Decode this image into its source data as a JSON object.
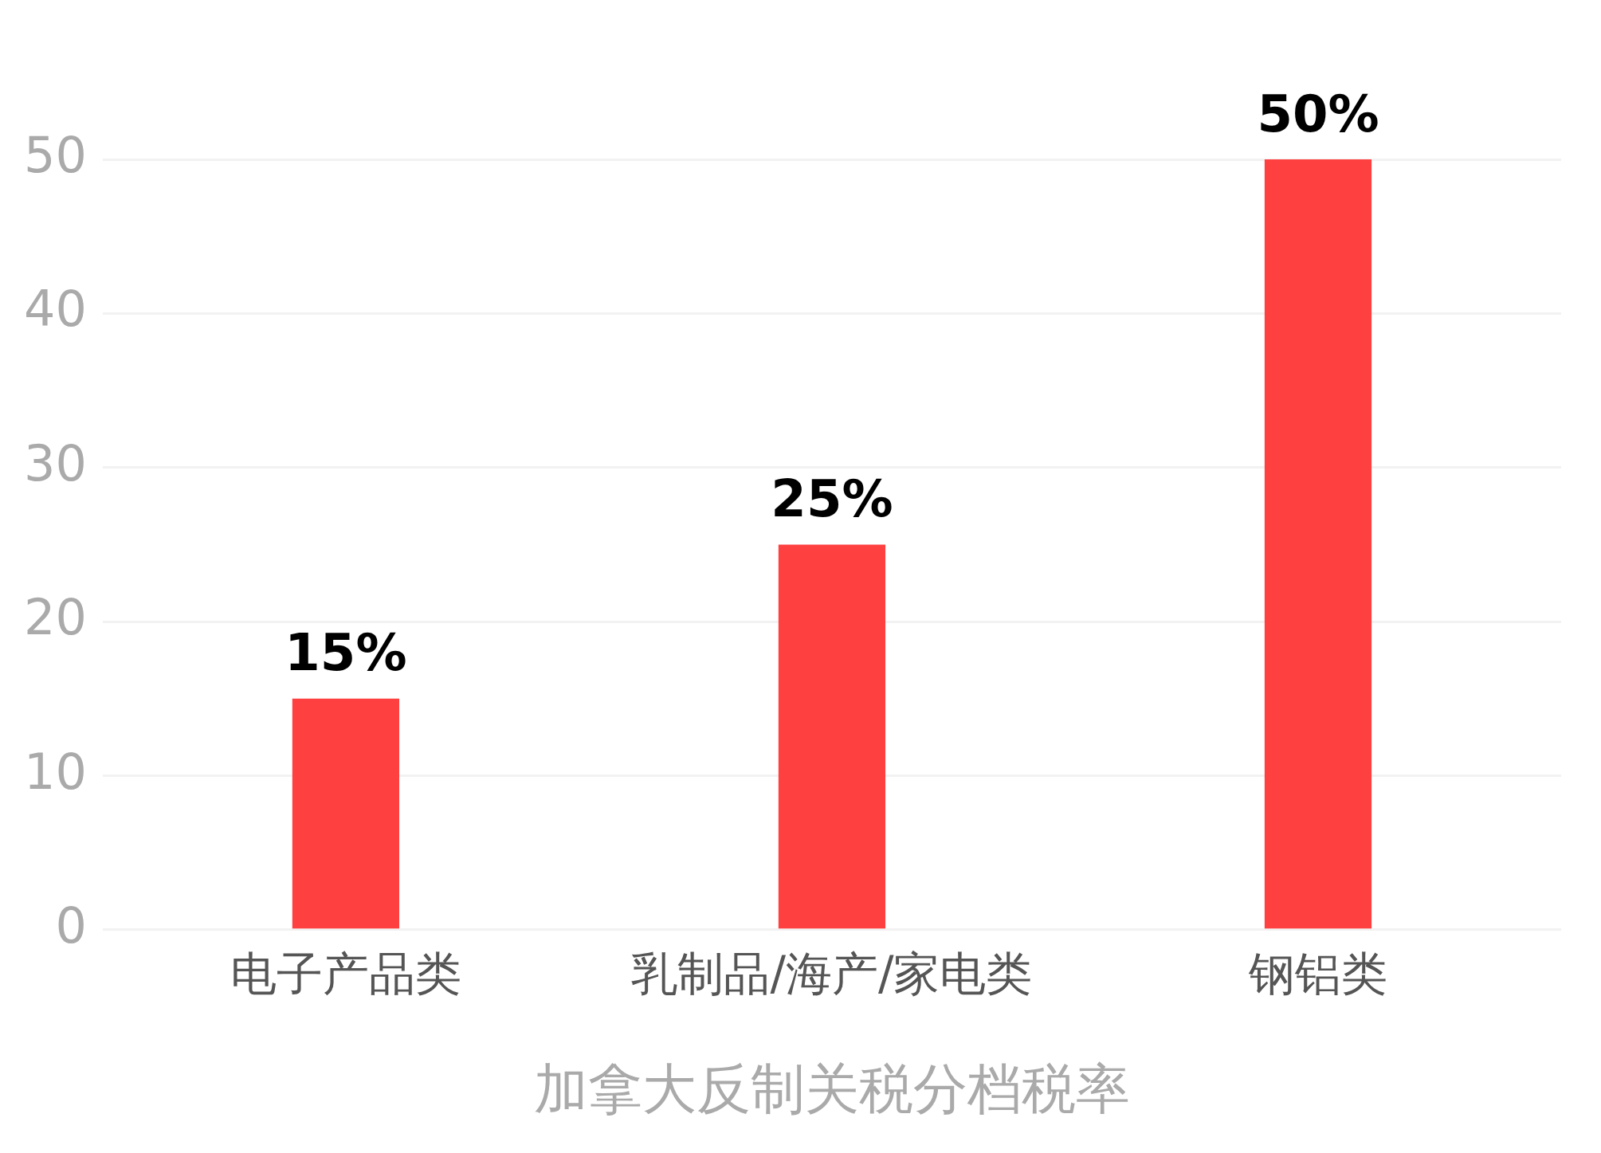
{
  "chart_data": {
    "type": "bar",
    "xlabel": "加拿大反制关税分档税率",
    "categories": [
      "电子产品类",
      "乳制品/海产/家电类",
      "钢铝类"
    ],
    "values": [
      15,
      25,
      50
    ],
    "color": "#ff4040",
    "value_labels": [
      "15%",
      "25%",
      "50%"
    ],
    "ylim": [
      0,
      50
    ],
    "yticks": [
      0,
      10,
      20,
      30,
      40,
      50
    ],
    "grid": "y",
    "legend": false
  }
}
